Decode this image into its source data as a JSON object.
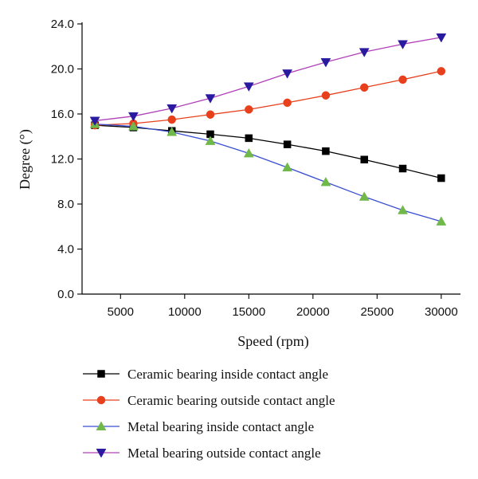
{
  "chart_data": {
    "type": "line",
    "xlabel": "Speed (rpm)",
    "ylabel": "Degree (°)",
    "xlim": [
      2000,
      31500
    ],
    "ylim": [
      0,
      24
    ],
    "x_ticks": [
      5000,
      10000,
      15000,
      20000,
      25000,
      30000
    ],
    "x_tick_labels": [
      "5000",
      "10000",
      "15000",
      "20000",
      "25000",
      "30000"
    ],
    "y_ticks": [
      0,
      4,
      8,
      12,
      16,
      20,
      24
    ],
    "y_tick_labels": [
      "0.0",
      "4.0",
      "8.0",
      "12.0",
      "16.0",
      "20.0",
      "24.0"
    ],
    "grid": false,
    "legend_position": "bottom",
    "x": [
      3000,
      6000,
      9000,
      12000,
      15000,
      18000,
      21000,
      24000,
      27000,
      30000
    ],
    "series": [
      {
        "name": "Ceramic bearing inside contact angle",
        "color": "#000000",
        "marker": "square",
        "values": [
          15.0,
          14.8,
          14.5,
          14.2,
          13.85,
          13.3,
          12.7,
          11.95,
          11.15,
          10.3
        ]
      },
      {
        "name": "Ceramic bearing outside contact angle",
        "color": "#e8401c",
        "marker": "circle",
        "values": [
          15.0,
          15.15,
          15.5,
          15.95,
          16.4,
          17.0,
          17.65,
          18.35,
          19.05,
          19.8
        ]
      },
      {
        "name": "Metal bearing inside contact angle",
        "color": "#3a4fd0",
        "marker": "triangle-up",
        "marker_color": "#70b84a",
        "values": [
          15.1,
          14.9,
          14.4,
          13.6,
          12.5,
          11.25,
          9.95,
          8.65,
          7.45,
          6.45
        ]
      },
      {
        "name": "Metal bearing outside contact angle",
        "color": "#b040b8",
        "marker": "triangle-down",
        "marker_color": "#2a1aa0",
        "values": [
          15.4,
          15.8,
          16.5,
          17.4,
          18.45,
          19.6,
          20.6,
          21.5,
          22.2,
          22.8
        ]
      }
    ]
  }
}
